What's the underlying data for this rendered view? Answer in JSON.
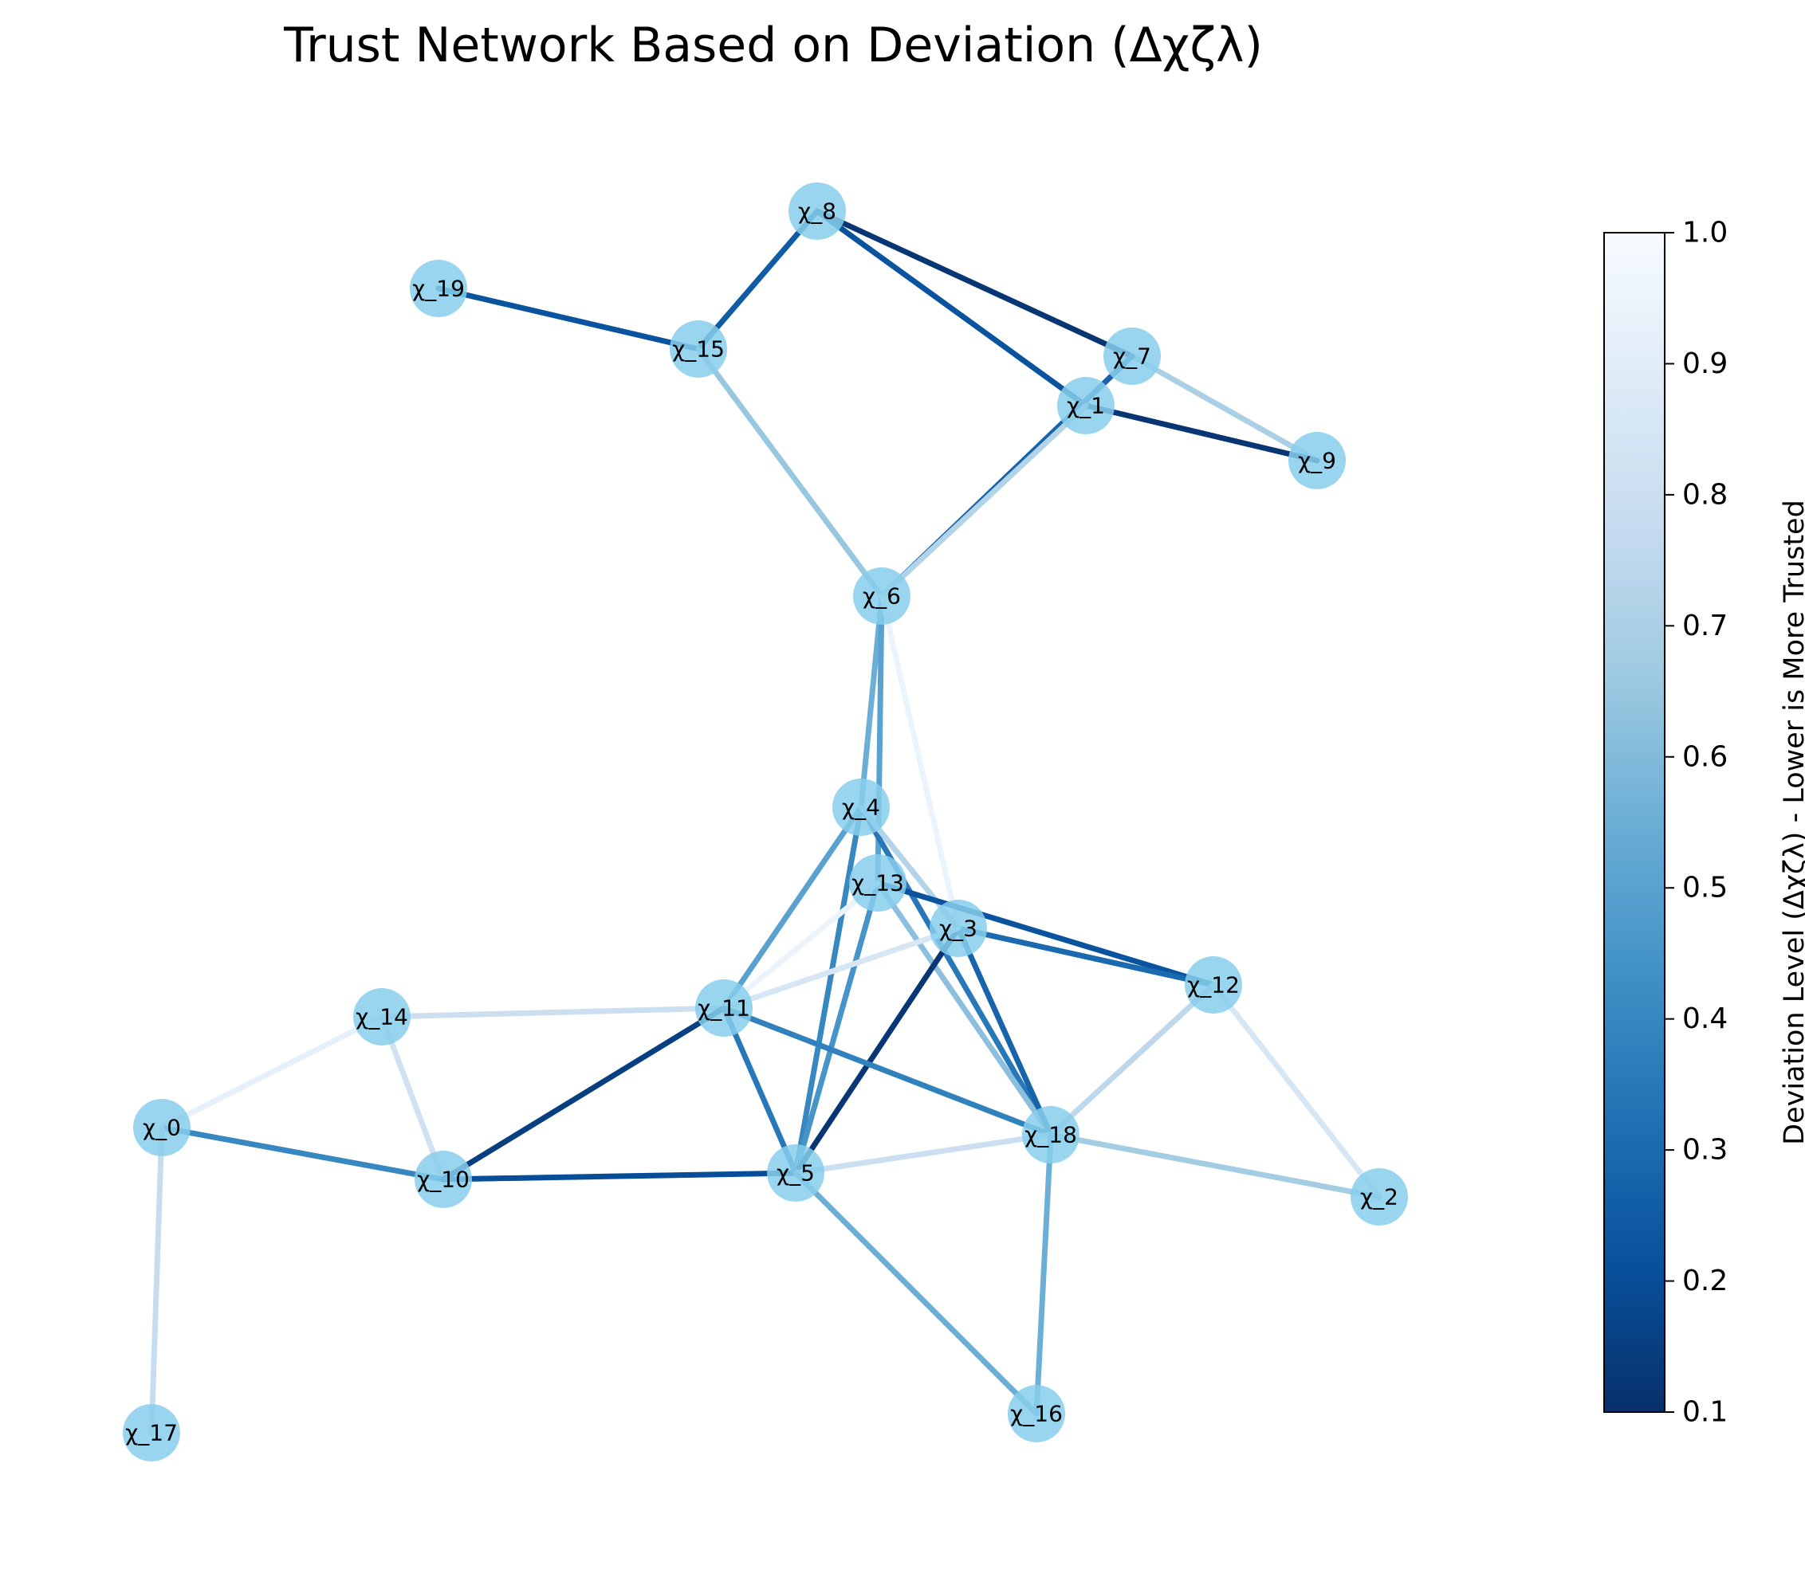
{
  "title": "Trust Network Based on Deviation (Δχζλ)",
  "colorbar": {
    "label": "Deviation Level (Δχζλ) - Lower is More Trusted",
    "range": [
      0.1,
      1.0
    ],
    "ticks": [
      "0.1",
      "0.2",
      "0.3",
      "0.4",
      "0.5",
      "0.6",
      "0.7",
      "0.8",
      "0.9",
      "1.0"
    ],
    "colormap": "Blues (reversed)"
  },
  "node_color": "#87ceeb",
  "nodes": [
    "χ_0",
    "χ_1",
    "χ_2",
    "χ_3",
    "χ_4",
    "χ_5",
    "χ_6",
    "χ_7",
    "χ_8",
    "χ_9",
    "χ_10",
    "χ_11",
    "χ_12",
    "χ_13",
    "χ_14",
    "χ_15",
    "χ_16",
    "χ_17",
    "χ_18",
    "χ_19"
  ],
  "edges": [
    {
      "source": 8,
      "target": 15,
      "deviation": 0.25
    },
    {
      "source": 8,
      "target": 7,
      "deviation": 0.12
    },
    {
      "source": 8,
      "target": 1,
      "deviation": 0.22
    },
    {
      "source": 19,
      "target": 15,
      "deviation": 0.22
    },
    {
      "source": 15,
      "target": 6,
      "deviation": 0.65
    },
    {
      "source": 7,
      "target": 9,
      "deviation": 0.7
    },
    {
      "source": 7,
      "target": 6,
      "deviation": 0.28
    },
    {
      "source": 1,
      "target": 9,
      "deviation": 0.12
    },
    {
      "source": 1,
      "target": 6,
      "deviation": 0.72
    },
    {
      "source": 6,
      "target": 4,
      "deviation": 0.55
    },
    {
      "source": 6,
      "target": 13,
      "deviation": 0.5
    },
    {
      "source": 6,
      "target": 3,
      "deviation": 0.95
    },
    {
      "source": 4,
      "target": 11,
      "deviation": 0.5
    },
    {
      "source": 4,
      "target": 5,
      "deviation": 0.4
    },
    {
      "source": 4,
      "target": 18,
      "deviation": 0.35
    },
    {
      "source": 4,
      "target": 3,
      "deviation": 0.72
    },
    {
      "source": 13,
      "target": 5,
      "deviation": 0.45
    },
    {
      "source": 13,
      "target": 12,
      "deviation": 0.22
    },
    {
      "source": 13,
      "target": 18,
      "deviation": 0.62
    },
    {
      "source": 13,
      "target": 11,
      "deviation": 0.95
    },
    {
      "source": 3,
      "target": 12,
      "deviation": 0.3
    },
    {
      "source": 3,
      "target": 18,
      "deviation": 0.28
    },
    {
      "source": 3,
      "target": 5,
      "deviation": 0.12
    },
    {
      "source": 3,
      "target": 11,
      "deviation": 0.85
    },
    {
      "source": 14,
      "target": 11,
      "deviation": 0.8
    },
    {
      "source": 14,
      "target": 0,
      "deviation": 0.92
    },
    {
      "source": 14,
      "target": 10,
      "deviation": 0.82
    },
    {
      "source": 11,
      "target": 10,
      "deviation": 0.15
    },
    {
      "source": 11,
      "target": 5,
      "deviation": 0.35
    },
    {
      "source": 11,
      "target": 18,
      "deviation": 0.38
    },
    {
      "source": 12,
      "target": 18,
      "deviation": 0.75
    },
    {
      "source": 12,
      "target": 2,
      "deviation": 0.85
    },
    {
      "source": 0,
      "target": 10,
      "deviation": 0.4
    },
    {
      "source": 0,
      "target": 17,
      "deviation": 0.78
    },
    {
      "source": 10,
      "target": 5,
      "deviation": 0.2
    },
    {
      "source": 5,
      "target": 18,
      "deviation": 0.8
    },
    {
      "source": 5,
      "target": 16,
      "deviation": 0.55
    },
    {
      "source": 18,
      "target": 2,
      "deviation": 0.68
    },
    {
      "source": 18,
      "target": 16,
      "deviation": 0.55
    }
  ]
}
